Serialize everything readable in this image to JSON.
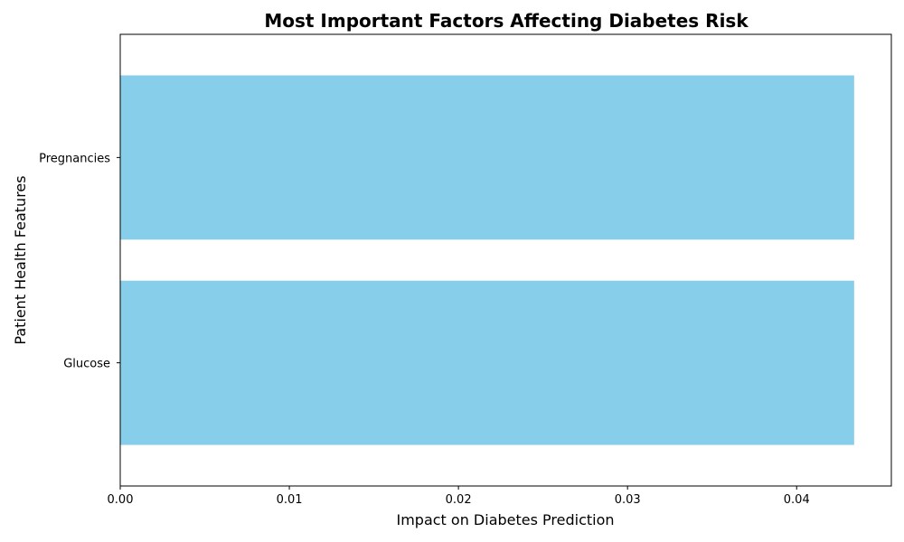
{
  "chart_data": {
    "type": "bar",
    "orientation": "horizontal",
    "title": "Most Important Factors Affecting Diabetes Risk",
    "xlabel": "Impact on Diabetes Prediction",
    "ylabel": "Patient Health Features",
    "categories": [
      "Glucose",
      "Pregnancies"
    ],
    "values": [
      0.0434,
      0.0434
    ],
    "xlim": [
      0,
      0.0456
    ],
    "xticks": [
      "0.00",
      "0.01",
      "0.02",
      "0.03",
      "0.04"
    ],
    "bar_color": "#87CEEB",
    "grid": false
  }
}
